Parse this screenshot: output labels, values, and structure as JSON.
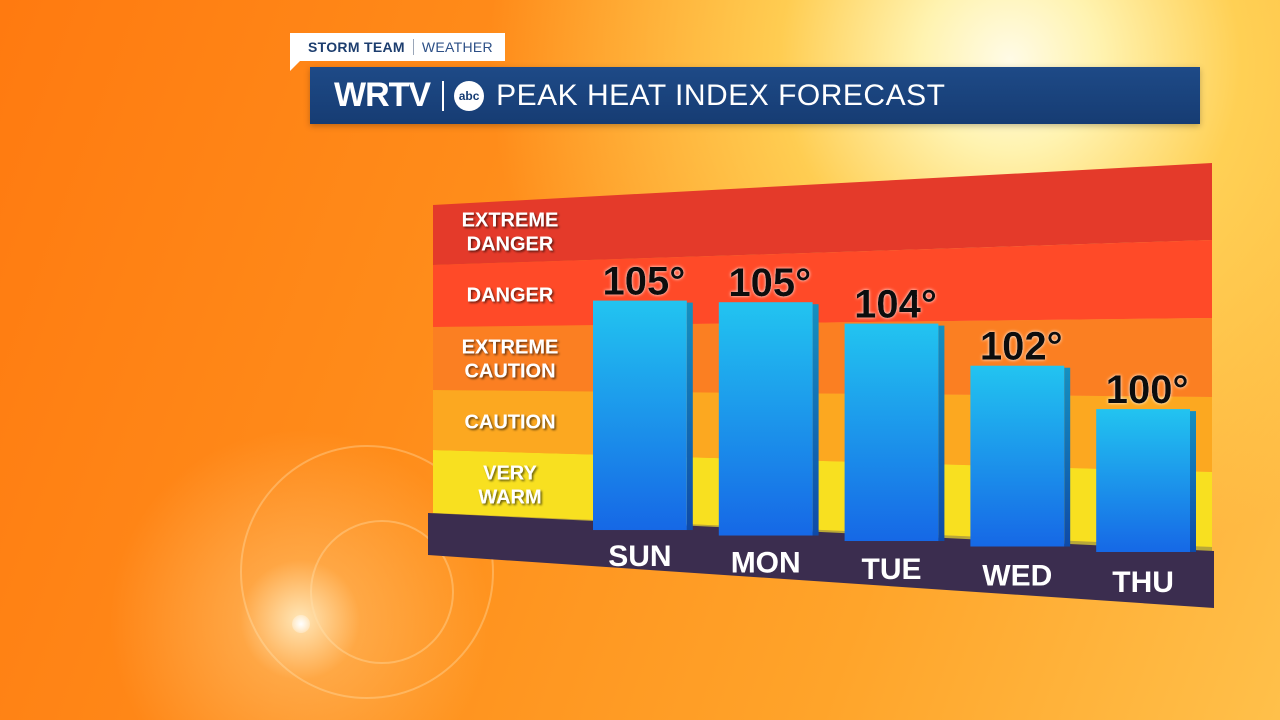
{
  "header": {
    "tag_primary": "STORM TEAM",
    "tag_secondary": "WEATHER",
    "station": "WRTV",
    "network_logo": "abc",
    "title": "PEAK HEAT INDEX FORECAST"
  },
  "chart_data": {
    "type": "bar",
    "title": "PEAK HEAT INDEX FORECAST",
    "categories": [
      "SUN",
      "MON",
      "TUE",
      "WED",
      "THU"
    ],
    "values": [
      105,
      105,
      104,
      102,
      100
    ],
    "value_labels": [
      "105°",
      "105°",
      "104°",
      "102°",
      "100°"
    ],
    "unit": "°",
    "bands": [
      {
        "label": [
          "VERY",
          "WARM"
        ],
        "color": "#f8e020"
      },
      {
        "label": [
          "CAUTION"
        ],
        "color": "#fca820"
      },
      {
        "label": [
          "EXTREME",
          "CAUTION"
        ],
        "color": "#fb7f22"
      },
      {
        "label": [
          "DANGER"
        ],
        "color": "#ff4a28"
      },
      {
        "label": [
          "EXTREME",
          "DANGER"
        ],
        "color": "#e43a2a"
      }
    ],
    "bar_color_top": "#22c4f0",
    "bar_color_bottom": "#1668e6",
    "base_color": "#3b2d4f",
    "grid": false,
    "legend": "none"
  }
}
